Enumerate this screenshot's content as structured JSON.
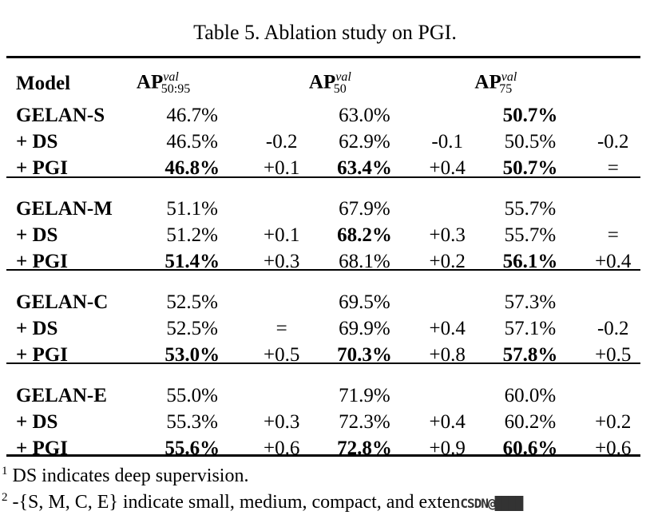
{
  "title": "Table 5. Ablation study on PGI.",
  "header": {
    "model": "Model",
    "ap": "AP",
    "c1_sup": "val",
    "c1_sub": "50:95",
    "c2_sup": "val",
    "c2_sub": "50",
    "c3_sup": "val",
    "c3_sub": "75"
  },
  "groups": [
    {
      "rows": [
        {
          "model": "GELAN-S",
          "v1": "46.7%",
          "d1": "",
          "v2": "63.0%",
          "d2": "",
          "v3": "50.7%",
          "d3": "",
          "b": [
            false,
            false,
            true
          ]
        },
        {
          "model": "+ DS",
          "v1": "46.5%",
          "d1": "-0.2",
          "v2": "62.9%",
          "d2": "-0.1",
          "v3": "50.5%",
          "d3": "-0.2",
          "b": [
            false,
            false,
            false
          ]
        },
        {
          "model": "+ PGI",
          "v1": "46.8%",
          "d1": "+0.1",
          "v2": "63.4%",
          "d2": "+0.4",
          "v3": "50.7%",
          "d3": "=",
          "b": [
            true,
            true,
            true
          ]
        }
      ]
    },
    {
      "rows": [
        {
          "model": "GELAN-M",
          "v1": "51.1%",
          "d1": "",
          "v2": "67.9%",
          "d2": "",
          "v3": "55.7%",
          "d3": "",
          "b": [
            false,
            false,
            false
          ]
        },
        {
          "model": "+ DS",
          "v1": "51.2%",
          "d1": "+0.1",
          "v2": "68.2%",
          "d2": "+0.3",
          "v3": "55.7%",
          "d3": "=",
          "b": [
            false,
            true,
            false
          ]
        },
        {
          "model": "+ PGI",
          "v1": "51.4%",
          "d1": "+0.3",
          "v2": "68.1%",
          "d2": "+0.2",
          "v3": "56.1%",
          "d3": "+0.4",
          "b": [
            true,
            false,
            true
          ]
        }
      ]
    },
    {
      "rows": [
        {
          "model": "GELAN-C",
          "v1": "52.5%",
          "d1": "",
          "v2": "69.5%",
          "d2": "",
          "v3": "57.3%",
          "d3": "",
          "b": [
            false,
            false,
            false
          ]
        },
        {
          "model": "+ DS",
          "v1": "52.5%",
          "d1": "=",
          "v2": "69.9%",
          "d2": "+0.4",
          "v3": "57.1%",
          "d3": "-0.2",
          "b": [
            false,
            false,
            false
          ]
        },
        {
          "model": "+ PGI",
          "v1": "53.0%",
          "d1": "+0.5",
          "v2": "70.3%",
          "d2": "+0.8",
          "v3": "57.8%",
          "d3": "+0.5",
          "b": [
            true,
            true,
            true
          ]
        }
      ]
    },
    {
      "rows": [
        {
          "model": "GELAN-E",
          "v1": "55.0%",
          "d1": "",
          "v2": "71.9%",
          "d2": "",
          "v3": "60.0%",
          "d3": "",
          "b": [
            false,
            false,
            false
          ]
        },
        {
          "model": "+ DS",
          "v1": "55.3%",
          "d1": "+0.3",
          "v2": "72.3%",
          "d2": "+0.4",
          "v3": "60.2%",
          "d3": "+0.2",
          "b": [
            false,
            false,
            false
          ]
        },
        {
          "model": "+ PGI",
          "v1": "55.6%",
          "d1": "+0.6",
          "v2": "72.8%",
          "d2": "+0.9",
          "v3": "60.6%",
          "d3": "+0.6",
          "b": [
            true,
            true,
            true
          ]
        }
      ]
    }
  ],
  "footnotes": [
    {
      "mark": "1",
      "text": "DS indicates deep supervision."
    },
    {
      "mark": "2",
      "text": "-{S, M, C, E} indicate small, medium, compact, and exten"
    }
  ],
  "watermark": "CSDN@..."
}
